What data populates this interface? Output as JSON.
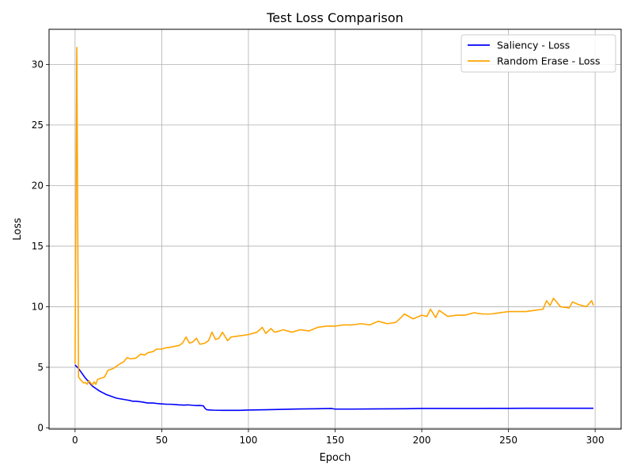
{
  "chart_data": {
    "type": "line",
    "title": "Test Loss Comparison",
    "xlabel": "Epoch",
    "ylabel": "Loss",
    "xlim": [
      -15,
      315
    ],
    "ylim": [
      -0.1,
      32.9
    ],
    "xticks": [
      0,
      50,
      100,
      150,
      200,
      250,
      300
    ],
    "yticks": [
      0,
      5,
      10,
      15,
      20,
      25,
      30
    ],
    "grid": true,
    "legend_position": "top-right",
    "series": [
      {
        "name": "Saliency - Loss",
        "color": "#0000ff",
        "x": [
          0,
          1,
          2,
          3,
          4,
          5,
          6,
          7,
          8,
          9,
          10,
          12,
          14,
          16,
          18,
          20,
          22,
          24,
          26,
          28,
          30,
          32,
          33,
          35,
          38,
          40,
          42,
          45,
          48,
          50,
          53,
          55,
          58,
          60,
          63,
          65,
          68,
          70,
          72,
          74,
          75,
          76,
          78,
          80,
          85,
          90,
          95,
          100,
          110,
          120,
          130,
          140,
          148,
          150,
          160,
          170,
          180,
          190,
          200,
          210,
          220,
          230,
          240,
          250,
          260,
          270,
          280,
          290,
          299
        ],
        "values": [
          5.2,
          5.05,
          4.9,
          4.7,
          4.5,
          4.3,
          4.1,
          3.95,
          3.8,
          3.6,
          3.45,
          3.25,
          3.05,
          2.9,
          2.75,
          2.65,
          2.55,
          2.45,
          2.4,
          2.35,
          2.3,
          2.25,
          2.2,
          2.2,
          2.15,
          2.1,
          2.05,
          2.05,
          2.0,
          1.98,
          1.95,
          1.95,
          1.92,
          1.9,
          1.88,
          1.9,
          1.86,
          1.84,
          1.85,
          1.82,
          1.6,
          1.5,
          1.47,
          1.46,
          1.45,
          1.45,
          1.45,
          1.47,
          1.5,
          1.53,
          1.56,
          1.58,
          1.6,
          1.55,
          1.55,
          1.56,
          1.57,
          1.58,
          1.6,
          1.6,
          1.6,
          1.6,
          1.61,
          1.61,
          1.62,
          1.62,
          1.62,
          1.62,
          1.62
        ]
      },
      {
        "name": "Random Erase - Loss",
        "color": "#ffa500",
        "x": [
          0,
          1,
          2,
          3,
          4,
          5,
          6,
          7,
          8,
          9,
          10,
          11,
          12,
          13,
          15,
          17,
          19,
          20,
          22,
          24,
          26,
          28,
          30,
          32,
          35,
          38,
          40,
          42,
          45,
          47,
          50,
          52,
          55,
          58,
          60,
          62,
          64,
          66,
          68,
          70,
          72,
          75,
          77,
          79,
          81,
          83,
          85,
          88,
          90,
          95,
          100,
          105,
          108,
          110,
          113,
          115,
          118,
          120,
          125,
          130,
          135,
          140,
          145,
          150,
          155,
          160,
          165,
          170,
          175,
          180,
          185,
          188,
          190,
          195,
          200,
          203,
          205,
          208,
          210,
          215,
          220,
          225,
          230,
          235,
          240,
          245,
          250,
          255,
          260,
          265,
          270,
          272,
          274,
          276,
          280,
          285,
          287,
          290,
          295,
          298,
          299
        ],
        "values": [
          5.3,
          31.4,
          4.2,
          4.0,
          3.85,
          3.7,
          3.75,
          3.6,
          3.9,
          3.7,
          3.55,
          3.8,
          3.6,
          4.0,
          4.1,
          4.2,
          4.75,
          4.8,
          4.9,
          5.1,
          5.3,
          5.45,
          5.8,
          5.7,
          5.75,
          6.1,
          6.0,
          6.2,
          6.3,
          6.5,
          6.5,
          6.6,
          6.65,
          6.75,
          6.8,
          7.0,
          7.5,
          7.0,
          7.1,
          7.4,
          6.9,
          7.0,
          7.2,
          7.9,
          7.3,
          7.4,
          7.9,
          7.2,
          7.5,
          7.6,
          7.7,
          7.9,
          8.3,
          7.8,
          8.2,
          7.9,
          8.0,
          8.1,
          7.9,
          8.1,
          8.0,
          8.3,
          8.4,
          8.4,
          8.5,
          8.5,
          8.6,
          8.5,
          8.8,
          8.6,
          8.7,
          9.1,
          9.4,
          9.0,
          9.3,
          9.2,
          9.8,
          9.1,
          9.7,
          9.2,
          9.3,
          9.3,
          9.5,
          9.4,
          9.4,
          9.5,
          9.6,
          9.6,
          9.6,
          9.7,
          9.8,
          10.5,
          10.1,
          10.7,
          10.0,
          9.9,
          10.4,
          10.2,
          10.0,
          10.5,
          10.1
        ]
      }
    ]
  }
}
